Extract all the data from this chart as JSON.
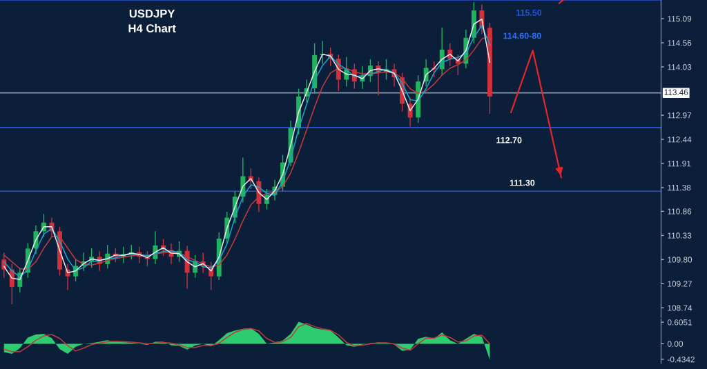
{
  "chart_data": [
    {
      "type": "candlestick",
      "title": "USDJPY",
      "subtitle": "H4 Chart",
      "annotations": [
        "114.60-80"
      ],
      "categories": [
        null,
        null,
        null,
        null,
        null,
        null,
        null,
        null,
        null,
        null,
        null,
        null,
        null,
        null,
        null,
        null,
        null,
        null,
        null,
        null,
        null,
        null,
        null,
        null,
        null,
        null,
        null,
        null,
        null,
        null,
        null,
        null,
        null,
        null,
        null,
        null,
        null,
        null,
        null,
        null,
        null,
        null,
        null,
        null,
        null,
        null,
        null,
        null,
        null,
        null,
        null,
        null,
        null,
        null,
        null,
        null,
        null,
        null,
        null,
        null,
        null,
        null,
        null,
        null,
        null,
        null,
        null,
        null,
        null,
        null,
        null,
        null,
        null,
        null,
        null,
        null,
        null,
        null,
        null,
        null,
        null,
        null,
        null
      ],
      "ohlc": [
        [
          109.8,
          109.95,
          109.4,
          109.58
        ],
        [
          109.58,
          109.7,
          108.82,
          109.2
        ],
        [
          109.2,
          109.62,
          109.08,
          109.51
        ],
        [
          109.51,
          110.16,
          109.4,
          110.04
        ],
        [
          110.04,
          110.55,
          109.92,
          110.42
        ],
        [
          110.42,
          110.8,
          110.3,
          110.61
        ],
        [
          110.61,
          110.72,
          110.3,
          110.42
        ],
        [
          110.42,
          110.52,
          109.45,
          109.58
        ],
        [
          109.58,
          109.7,
          109.13,
          109.43
        ],
        [
          109.43,
          109.8,
          109.32,
          109.66
        ],
        [
          109.66,
          109.95,
          109.55,
          109.76
        ],
        [
          109.76,
          110.05,
          109.62,
          109.86
        ],
        [
          109.86,
          109.98,
          109.55,
          109.7
        ],
        [
          109.7,
          110.12,
          109.6,
          109.93
        ],
        [
          109.93,
          110.05,
          109.74,
          109.86
        ],
        [
          109.86,
          110.08,
          109.72,
          109.92
        ],
        [
          109.92,
          110.12,
          109.8,
          109.96
        ],
        [
          109.96,
          110.08,
          109.72,
          109.86
        ],
        [
          109.86,
          109.98,
          109.65,
          109.81
        ],
        [
          109.81,
          110.42,
          109.7,
          110.11
        ],
        [
          110.11,
          110.25,
          109.88,
          110.01
        ],
        [
          110.01,
          110.15,
          109.7,
          109.86
        ],
        [
          109.86,
          110.2,
          109.75,
          109.99
        ],
        [
          109.99,
          110.1,
          109.16,
          109.51
        ],
        [
          109.51,
          109.9,
          109.4,
          109.76
        ],
        [
          109.76,
          109.95,
          109.5,
          109.66
        ],
        [
          109.66,
          109.75,
          109.13,
          109.43
        ],
        [
          109.43,
          110.4,
          109.35,
          110.26
        ],
        [
          110.26,
          110.85,
          110.15,
          110.72
        ],
        [
          110.72,
          111.3,
          110.6,
          111.18
        ],
        [
          111.18,
          112.04,
          111.05,
          111.63
        ],
        [
          111.63,
          111.8,
          111.35,
          111.52
        ],
        [
          111.52,
          111.6,
          110.84,
          111.02
        ],
        [
          111.02,
          111.35,
          110.9,
          111.22
        ],
        [
          111.22,
          111.55,
          111.1,
          111.4
        ],
        [
          111.4,
          112.1,
          111.3,
          111.93
        ],
        [
          111.93,
          112.85,
          111.85,
          112.69
        ],
        [
          112.69,
          113.55,
          112.55,
          113.38
        ],
        [
          113.38,
          113.75,
          113.25,
          113.56
        ],
        [
          113.56,
          114.55,
          113.45,
          114.29
        ],
        [
          114.29,
          114.6,
          114.1,
          114.32
        ],
        [
          114.32,
          114.45,
          114.05,
          114.21
        ],
        [
          114.21,
          114.3,
          113.5,
          113.75
        ],
        [
          113.75,
          114.25,
          113.6,
          113.98
        ],
        [
          113.98,
          114.1,
          113.55,
          113.71
        ],
        [
          113.71,
          114.05,
          113.55,
          113.83
        ],
        [
          113.83,
          114.2,
          113.7,
          114.06
        ],
        [
          114.06,
          114.15,
          113.4,
          113.91
        ],
        [
          113.91,
          114.2,
          113.75,
          113.98
        ],
        [
          113.98,
          114.1,
          113.6,
          113.8
        ],
        [
          113.8,
          113.9,
          113.05,
          113.22
        ],
        [
          113.22,
          113.35,
          112.72,
          112.92
        ],
        [
          112.92,
          113.85,
          112.8,
          113.71
        ],
        [
          113.71,
          114.2,
          113.6,
          114.01
        ],
        [
          114.01,
          114.15,
          113.8,
          113.98
        ],
        [
          113.98,
          114.89,
          113.85,
          114.41
        ],
        [
          114.41,
          114.55,
          114.05,
          114.21
        ],
        [
          114.21,
          114.3,
          113.85,
          114.1
        ],
        [
          114.1,
          114.85,
          114.0,
          114.67
        ],
        [
          114.67,
          115.45,
          114.55,
          115.27
        ],
        [
          115.27,
          115.4,
          114.75,
          114.89
        ],
        [
          114.89,
          115.0,
          113.0,
          113.38
        ],
        null,
        null,
        null,
        null,
        null,
        null,
        null,
        null,
        null,
        null,
        null,
        null,
        null,
        null,
        null,
        null,
        null,
        null,
        null,
        null,
        null
      ],
      "colors": [
        "#d0313d",
        "#d0313d",
        "#22b35e",
        "#22b35e",
        "#22b35e",
        "#22b35e",
        "#d0313d",
        "#d0313d",
        "#d0313d",
        "#22b35e",
        "#22b35e",
        "#22b35e",
        "#d0313d",
        "#22b35e",
        "#d0313d",
        "#22b35e",
        "#22b35e",
        "#d0313d",
        "#d0313d",
        "#22b35e",
        "#d0313d",
        "#d0313d",
        "#22b35e",
        "#d0313d",
        "#22b35e",
        "#d0313d",
        "#d0313d",
        "#22b35e",
        "#22b35e",
        "#22b35e",
        "#22b35e",
        "#d0313d",
        "#d0313d",
        "#22b35e",
        "#22b35e",
        "#22b35e",
        "#22b35e",
        "#22b35e",
        "#22b35e",
        "#22b35e",
        "#22b35e",
        "#d0313d",
        "#d0313d",
        "#22b35e",
        "#d0313d",
        "#22b35e",
        "#22b35e",
        "#d0313d",
        "#22b35e",
        "#d0313d",
        "#d0313d",
        "#d0313d",
        "#22b35e",
        "#22b35e",
        "#d0313d",
        "#22b35e",
        "#d0313d",
        "#d0313d",
        "#22b35e",
        "#22b35e",
        "#d0313d",
        "#d0313d",
        null,
        null,
        null,
        null,
        null,
        null,
        null,
        null,
        null,
        null,
        null,
        null,
        null,
        null,
        null,
        null,
        null,
        null,
        null,
        null,
        null
      ],
      "series": [
        {
          "type": "line",
          "color": "#c23a3a",
          "values": [
            109.9,
            109.75,
            109.6,
            109.58,
            109.75,
            110.05,
            110.3,
            110.3,
            110.05,
            109.8,
            109.7,
            109.68,
            109.72,
            109.78,
            109.82,
            109.85,
            109.88,
            109.9,
            109.89,
            109.92,
            109.95,
            109.96,
            109.95,
            109.86,
            109.78,
            109.7,
            109.64,
            109.68,
            109.9,
            110.25,
            110.65,
            111.0,
            111.18,
            111.25,
            111.28,
            111.4,
            111.7,
            112.15,
            112.65,
            113.15,
            113.6,
            113.9,
            114.0,
            114.0,
            113.92,
            113.88,
            113.88,
            113.9,
            113.92,
            113.9,
            113.78,
            113.55,
            113.45,
            113.5,
            113.65,
            113.85,
            114.0,
            114.08,
            114.18,
            114.4,
            114.65,
            114.7,
            null,
            null,
            null,
            null,
            null,
            null,
            null,
            null,
            null,
            null,
            null,
            null,
            null,
            null,
            null,
            null,
            null,
            null,
            null,
            null,
            null
          ]
        },
        {
          "type": "line",
          "color": "#1aa3c9",
          "values": [
            109.75,
            109.55,
            109.42,
            109.58,
            109.99,
            110.36,
            110.48,
            110.2,
            109.81,
            109.56,
            109.62,
            109.76,
            109.77,
            109.83,
            109.83,
            109.9,
            109.91,
            109.91,
            109.88,
            109.93,
            109.98,
            109.99,
            109.95,
            109.79,
            109.75,
            109.64,
            109.62,
            109.78,
            110.14,
            110.72,
            111.18,
            111.44,
            111.39,
            111.25,
            111.21,
            111.52,
            112.01,
            112.67,
            113.21,
            113.74,
            114.06,
            114.27,
            114.09,
            113.98,
            113.81,
            113.84,
            113.87,
            113.93,
            113.98,
            113.9,
            113.67,
            113.31,
            113.28,
            113.55,
            113.9,
            114.13,
            114.2,
            114.24,
            114.33,
            114.68,
            114.94,
            114.51,
            null,
            null,
            null,
            null,
            null,
            null,
            null,
            null,
            null,
            null,
            null,
            null,
            null,
            null,
            null,
            null,
            null,
            null,
            null,
            null,
            null
          ]
        },
        {
          "type": "line",
          "color": "#e6e9ee",
          "values": [
            109.65,
            109.39,
            109.36,
            109.78,
            110.23,
            110.52,
            110.52,
            110.0,
            109.51,
            109.55,
            109.71,
            109.81,
            109.78,
            109.82,
            109.9,
            109.89,
            109.94,
            109.91,
            109.84,
            109.96,
            110.06,
            109.94,
            109.93,
            109.75,
            109.64,
            109.71,
            109.55,
            109.85,
            110.49,
            110.95,
            111.41,
            111.58,
            111.27,
            111.12,
            111.31,
            111.67,
            112.31,
            113.04,
            113.47,
            113.93,
            114.31,
            114.27,
            113.98,
            113.87,
            113.85,
            113.77,
            113.95,
            113.99,
            113.95,
            113.89,
            113.51,
            113.07,
            113.32,
            113.86,
            114.0,
            114.2,
            114.31,
            114.16,
            114.39,
            114.97,
            115.08,
            114.13,
            null,
            null,
            null,
            null,
            null,
            null,
            null,
            null,
            null,
            null,
            null,
            null,
            null,
            null,
            null,
            null,
            null,
            null,
            null,
            null,
            null
          ]
        }
      ],
      "ylim": [
        108.53,
        115.5
      ],
      "yticks": [
        108.74,
        {
          "value": 109.27,
          "label": "109.27"
        },
        {
          "value": 109.8,
          "label": "109.80"
        },
        110.33,
        110.86,
        111.38,
        111.91,
        112.44,
        112.97,
        114.03,
        114.56,
        115.09
      ],
      "ref_lines": [
        {
          "axis": "y",
          "value": 113.46,
          "label": "113.46",
          "color": "#8a97a8"
        },
        {
          "axis": "y",
          "value": 112.7,
          "label": "112.70",
          "color": "#2456d6"
        },
        {
          "axis": "y",
          "value": 111.3,
          "label": "111.30",
          "color": "#2456d6"
        },
        {
          "axis": "y",
          "value": 115.5,
          "label": "115.50",
          "color": "#2456d6"
        }
      ],
      "tick_labels": "y"
    },
    {
      "type": "area",
      "categories": [
        null,
        null,
        null,
        null,
        null,
        null,
        null,
        null,
        null,
        null,
        null,
        null,
        null,
        null,
        null,
        null,
        null,
        null,
        null,
        null,
        null,
        null,
        null,
        null,
        null,
        null,
        null,
        null,
        null,
        null,
        null,
        null,
        null,
        null,
        null,
        null,
        null,
        null,
        null,
        null,
        null,
        null,
        null,
        null,
        null,
        null,
        null,
        null,
        null,
        null,
        null,
        null,
        null,
        null,
        null,
        null,
        null,
        null,
        null,
        null,
        null,
        null,
        null,
        null,
        null,
        null,
        null,
        null,
        null,
        null,
        null,
        null,
        null,
        null,
        null,
        null,
        null,
        null,
        null,
        null,
        null,
        null,
        null
      ],
      "series": [
        {
          "type": "area",
          "color": "#2ecc71",
          "values": [
            -0.23,
            -0.28,
            -0.12,
            0.18,
            0.26,
            0.28,
            0.16,
            -0.15,
            -0.28,
            -0.08,
            0.0,
            0.02,
            0.06,
            0.1,
            0.05,
            0.06,
            0.03,
            0.0,
            -0.03,
            0.06,
            0.06,
            -0.04,
            -0.06,
            -0.16,
            -0.05,
            0.0,
            -0.07,
            0.1,
            0.3,
            0.37,
            0.42,
            0.44,
            0.28,
            0.0,
            0.04,
            0.09,
            0.28,
            0.62,
            0.54,
            0.44,
            0.4,
            0.37,
            0.18,
            -0.04,
            -0.08,
            -0.02,
            0.02,
            0.04,
            0.03,
            -0.02,
            -0.2,
            -0.17,
            0.14,
            0.2,
            0.14,
            0.32,
            0.1,
            0.0,
            0.14,
            0.28,
            0.2,
            -0.45,
            null,
            null,
            null,
            null,
            null,
            null,
            null,
            null,
            null,
            null,
            null,
            null,
            null,
            null,
            null,
            null,
            null,
            null,
            null,
            null,
            null
          ]
        },
        {
          "type": "line",
          "color": "#c23a3a",
          "values": [
            -0.15,
            -0.22,
            -0.22,
            -0.08,
            0.1,
            0.22,
            0.26,
            0.15,
            -0.05,
            -0.2,
            -0.12,
            -0.02,
            0.02,
            0.06,
            0.07,
            0.06,
            0.05,
            0.03,
            0.0,
            0.02,
            0.04,
            0.02,
            -0.03,
            -0.1,
            -0.1,
            -0.05,
            -0.05,
            0.01,
            0.18,
            0.32,
            0.4,
            0.43,
            0.36,
            0.15,
            0.04,
            0.06,
            0.18,
            0.48,
            0.57,
            0.48,
            0.42,
            0.38,
            0.25,
            0.04,
            -0.06,
            -0.04,
            0.0,
            0.03,
            0.03,
            0.0,
            -0.12,
            -0.18,
            0.0,
            0.16,
            0.16,
            0.25,
            0.18,
            0.05,
            0.08,
            0.22,
            0.24,
            0.0,
            null,
            null,
            null,
            null,
            null,
            null,
            null,
            null,
            null,
            null,
            null,
            null,
            null,
            null,
            null,
            null,
            null,
            null,
            null,
            null,
            null
          ]
        }
      ],
      "ylim": [
        -0.55,
        0.7
      ],
      "yticks": [
        -0.4342,
        {
          "value": 0,
          "label": "0.00"
        },
        0.6051
      ],
      "tick_labels": "y"
    }
  ]
}
